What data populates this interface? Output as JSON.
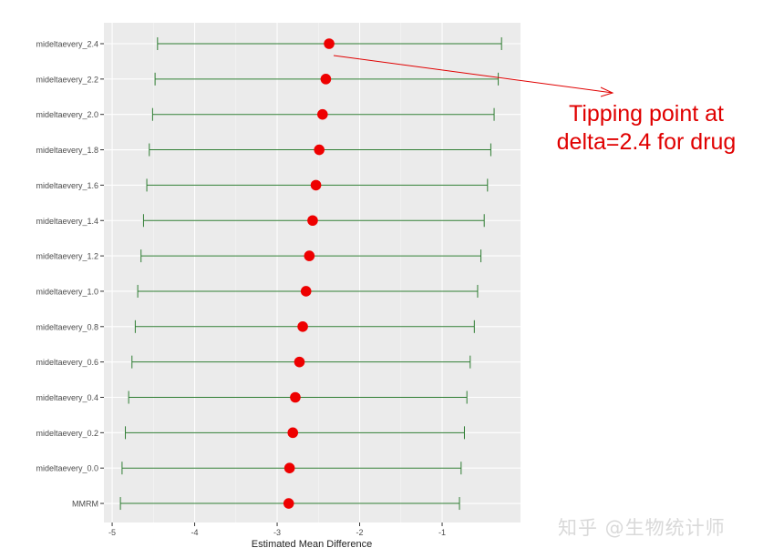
{
  "chart_data": {
    "type": "forest",
    "xlabel": "Estimated Mean Difference",
    "xlim": [
      -5.1,
      -0.05
    ],
    "xticks": [
      -5,
      -4,
      -3,
      -2,
      -1
    ],
    "grid": true,
    "categories": [
      "mideltaevery_2.4",
      "mideltaevery_2.2",
      "mideltaevery_2.0",
      "mideltaevery_1.8",
      "mideltaevery_1.6",
      "mideltaevery_1.4",
      "mideltaevery_1.2",
      "mideltaevery_1.0",
      "mideltaevery_0.8",
      "mideltaevery_0.6",
      "mideltaevery_0.4",
      "mideltaevery_0.2",
      "mideltaevery_0.0",
      "MMRM"
    ],
    "estimate": [
      -2.37,
      -2.41,
      -2.45,
      -2.49,
      -2.53,
      -2.57,
      -2.61,
      -2.65,
      -2.69,
      -2.73,
      -2.78,
      -2.81,
      -2.85,
      -2.86
    ],
    "lower": [
      -4.45,
      -4.48,
      -4.51,
      -4.55,
      -4.58,
      -4.62,
      -4.65,
      -4.69,
      -4.72,
      -4.76,
      -4.8,
      -4.84,
      -4.88,
      -4.9
    ],
    "upper": [
      -0.28,
      -0.32,
      -0.37,
      -0.41,
      -0.45,
      -0.49,
      -0.53,
      -0.57,
      -0.61,
      -0.66,
      -0.7,
      -0.73,
      -0.77,
      -0.79
    ],
    "colors": {
      "point": "#ee0000",
      "interval": "#2e7d32",
      "panel": "#ebebeb",
      "annotation": "#e00000"
    }
  },
  "annotation": {
    "lines": [
      "Tipping point at",
      "delta=2.4 for drug"
    ]
  },
  "watermark": "知乎 @生物统计师"
}
